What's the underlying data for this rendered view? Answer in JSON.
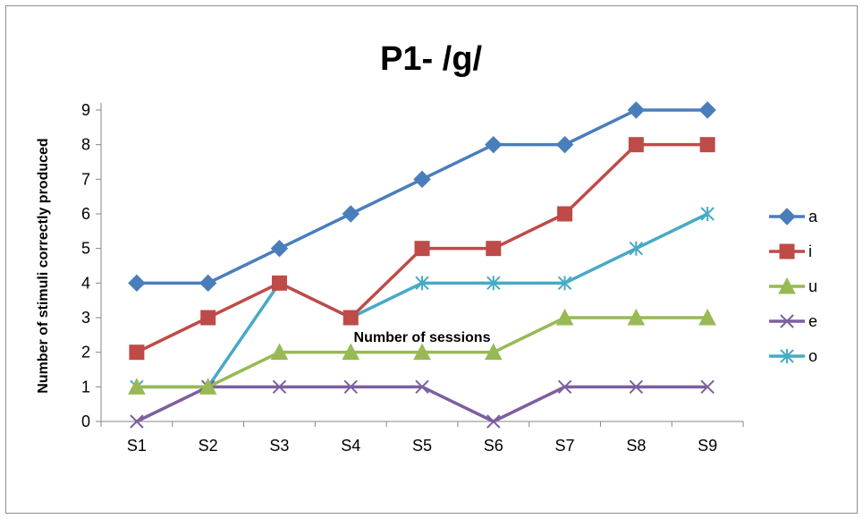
{
  "chart_data": {
    "type": "line",
    "title": "P1- /g/",
    "xlabel": "Number of sessions",
    "ylabel": "Number of stimuli correctly produced",
    "categories": [
      "S1",
      "S2",
      "S3",
      "S4",
      "S5",
      "S6",
      "S7",
      "S8",
      "S9"
    ],
    "ylim": [
      0,
      9
    ],
    "yticks": [
      "0",
      "1",
      "2",
      "3",
      "4",
      "5",
      "6",
      "7",
      "8",
      "9"
    ],
    "grid": false,
    "legend_position": "right",
    "series": [
      {
        "name": "a",
        "color": "#4a7ebb",
        "marker": "diamond",
        "values": [
          4,
          4,
          5,
          6,
          7,
          8,
          8,
          9,
          9
        ]
      },
      {
        "name": "i",
        "color": "#be4b48",
        "marker": "square",
        "values": [
          2,
          3,
          4,
          3,
          5,
          5,
          6,
          8,
          8
        ]
      },
      {
        "name": "u",
        "color": "#98b954",
        "marker": "triangle",
        "values": [
          1,
          1,
          2,
          2,
          2,
          2,
          3,
          3,
          3
        ]
      },
      {
        "name": "e",
        "color": "#7d5fa0",
        "marker": "x",
        "values": [
          0,
          1,
          1,
          1,
          1,
          0,
          1,
          1,
          1
        ]
      },
      {
        "name": "o",
        "color": "#46aac5",
        "marker": "star",
        "values": [
          1,
          1,
          4,
          3,
          4,
          4,
          4,
          5,
          6
        ]
      }
    ]
  }
}
